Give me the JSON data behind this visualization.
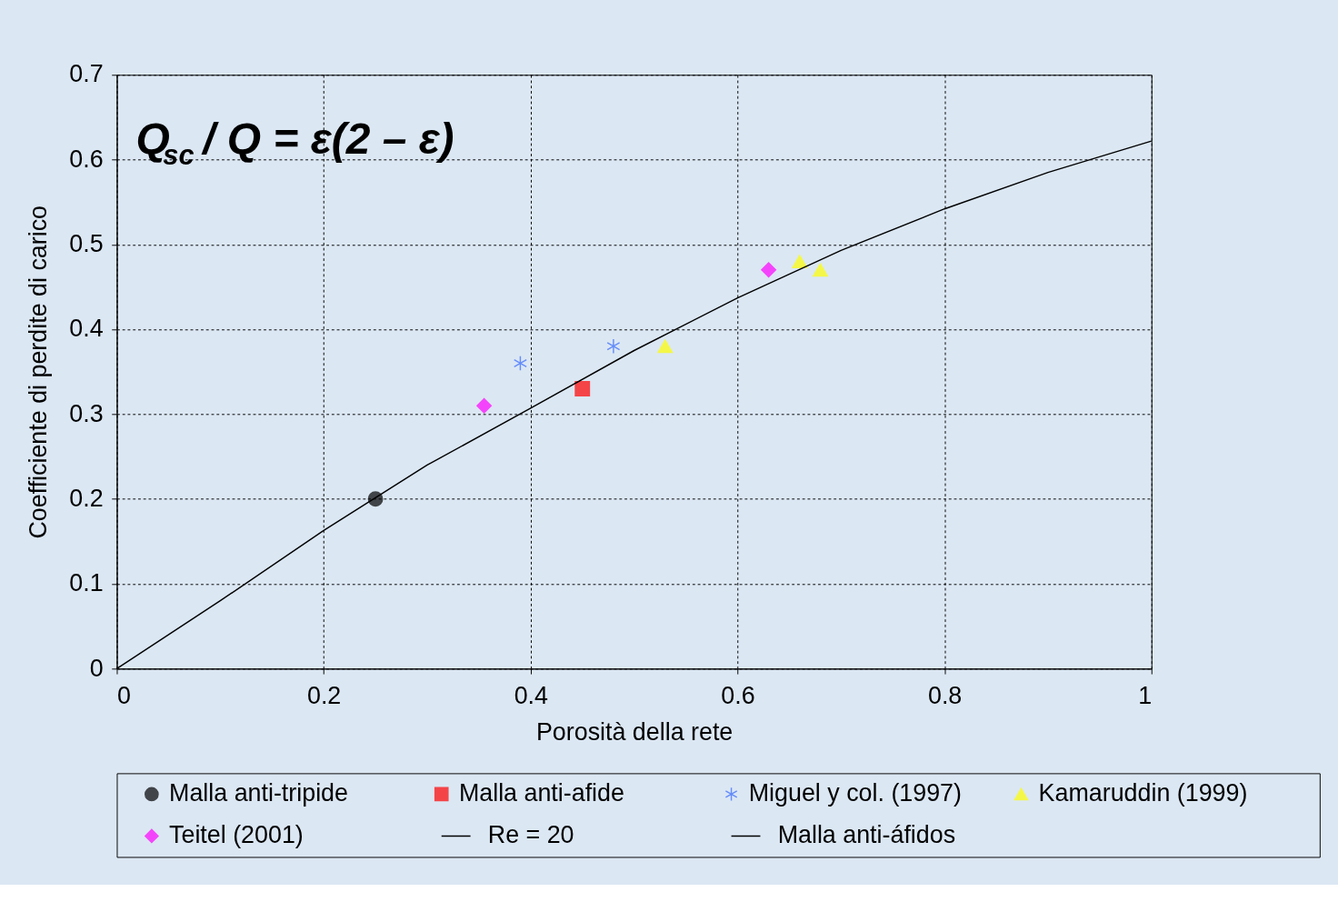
{
  "chart_data": {
    "type": "scatter",
    "xlabel": "Porosità della rete",
    "ylabel": "Coefficiente di perdite di carico",
    "annotations": [
      "Q$_{sc}$ / Q = ε(2 – ε)"
    ],
    "xlim": [
      0,
      1
    ],
    "xticks": [
      0,
      0.2,
      0.4,
      0.6,
      0.8,
      1
    ],
    "ylim": [
      0,
      0.7
    ],
    "yticks": [
      0,
      0.1,
      0.2,
      0.3,
      0.4,
      0.5,
      0.6,
      0.7
    ],
    "grid": true,
    "legend": "bottom",
    "series": [
      {
        "name": "Malla anti-tripide",
        "marker": "circle",
        "color": "#000000",
        "x": [
          0.25
        ],
        "values": [
          0.2
        ]
      },
      {
        "name": "Malla anti-afide",
        "marker": "square",
        "color": "#ff0000",
        "x": [
          0.45
        ],
        "values": [
          0.33
        ]
      },
      {
        "name": "Miguel y col. (1997)",
        "marker": "cross",
        "color": "#3366ff",
        "x": [
          0.39,
          0.48
        ],
        "values": [
          0.36,
          0.38
        ]
      },
      {
        "name": "Kamaruddin (1999)",
        "marker": "triangle",
        "color": "#ffff00",
        "x": [
          0.53,
          0.66,
          0.68
        ],
        "values": [
          0.38,
          0.48,
          0.47
        ]
      },
      {
        "name": "Teitel (2001)",
        "marker": "diamond",
        "color": "#ff00ff",
        "x": [
          0.355,
          0.63
        ],
        "values": [
          0.31,
          0.47
        ]
      },
      {
        "name": "Re = 20",
        "type": "line",
        "marker": "none",
        "color": "#000000"
      },
      {
        "name": "Malla anti-áfidos",
        "type": "line",
        "marker": "none",
        "color": "#000000",
        "x": [
          0,
          0.1,
          0.2,
          0.3,
          0.4,
          0.5,
          0.6,
          0.7,
          0.8,
          0.9,
          1
        ],
        "values": [
          0,
          0.08,
          0.163,
          0.24,
          0.307,
          0.375,
          0.437,
          0.493,
          0.542,
          0.585,
          0.622
        ]
      }
    ]
  }
}
